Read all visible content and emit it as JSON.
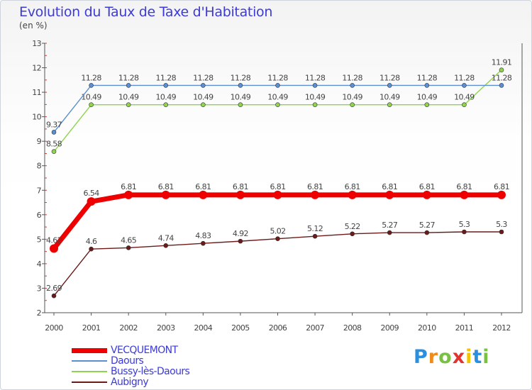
{
  "header": {
    "title": "Evolution du Taux de Taxe d'Habitation",
    "unit": "(en %)"
  },
  "chart_data": {
    "type": "line",
    "x": [
      2000,
      2001,
      2002,
      2003,
      2004,
      2005,
      2006,
      2007,
      2008,
      2009,
      2010,
      2011,
      2012
    ],
    "ylim": [
      2,
      13
    ],
    "yticks": [
      2,
      3,
      4,
      5,
      6,
      7,
      8,
      9,
      10,
      11,
      12,
      13
    ],
    "grid": false,
    "legend_position": "bottom-left",
    "series": [
      {
        "name": "Aubigny",
        "color": "#6b1a1a",
        "values": [
          2.69,
          4.6,
          4.65,
          4.74,
          4.83,
          4.92,
          5.02,
          5.12,
          5.22,
          5.27,
          5.27,
          5.3,
          5.3
        ],
        "labels": [
          "2.69",
          "4.6",
          "4.65",
          "4.74",
          "4.83",
          "4.92",
          "5.02",
          "5.12",
          "5.22",
          "5.27",
          "5.27",
          "5.3",
          "5.3"
        ]
      },
      {
        "name": "Bussy-lès-Daours",
        "color": "#8fd44a",
        "values": [
          8.58,
          10.49,
          10.49,
          10.49,
          10.49,
          10.49,
          10.49,
          10.49,
          10.49,
          10.49,
          10.49,
          10.49,
          11.91
        ],
        "labels": [
          "8.58",
          "10.49",
          "10.49",
          "10.49",
          "10.49",
          "10.49",
          "10.49",
          "10.49",
          "10.49",
          "10.49",
          "10.49",
          "10.49",
          "11.91"
        ]
      },
      {
        "name": "Daours",
        "color": "#5b8fd0",
        "values": [
          9.37,
          11.28,
          11.28,
          11.28,
          11.28,
          11.28,
          11.28,
          11.28,
          11.28,
          11.28,
          11.28,
          11.28,
          11.28
        ],
        "labels": [
          "9.37",
          "11.28",
          "11.28",
          "11.28",
          "11.28",
          "11.28",
          "11.28",
          "11.28",
          "11.28",
          "11.28",
          "11.28",
          "11.28",
          "11.28"
        ]
      },
      {
        "name": "VECQUEMONT",
        "color": "#ee0000",
        "values": [
          4.62,
          6.54,
          6.81,
          6.81,
          6.81,
          6.81,
          6.81,
          6.81,
          6.81,
          6.81,
          6.81,
          6.81,
          6.81
        ],
        "labels": [
          "4.62",
          "6.54",
          "6.81",
          "6.81",
          "6.81",
          "6.81",
          "6.81",
          "6.81",
          "6.81",
          "6.81",
          "6.81",
          "6.81",
          "6.81"
        ]
      }
    ]
  },
  "legend": {
    "items": [
      {
        "label": "VECQUEMONT",
        "color": "#ee0000"
      },
      {
        "label": "Daours",
        "color": "#5b8fd0"
      },
      {
        "label": "Bussy-lès-Daours",
        "color": "#8fd44a"
      },
      {
        "label": "Aubigny",
        "color": "#6b1a1a"
      }
    ]
  },
  "logo": {
    "letters": [
      "P",
      "r",
      "o",
      "x",
      "i",
      "t",
      "i"
    ],
    "colors": [
      "#2b8fe0",
      "#f08a1c",
      "#7ac143",
      "#e5322e",
      "#f2c500",
      "#2b8fe0",
      "#7ac143"
    ]
  }
}
